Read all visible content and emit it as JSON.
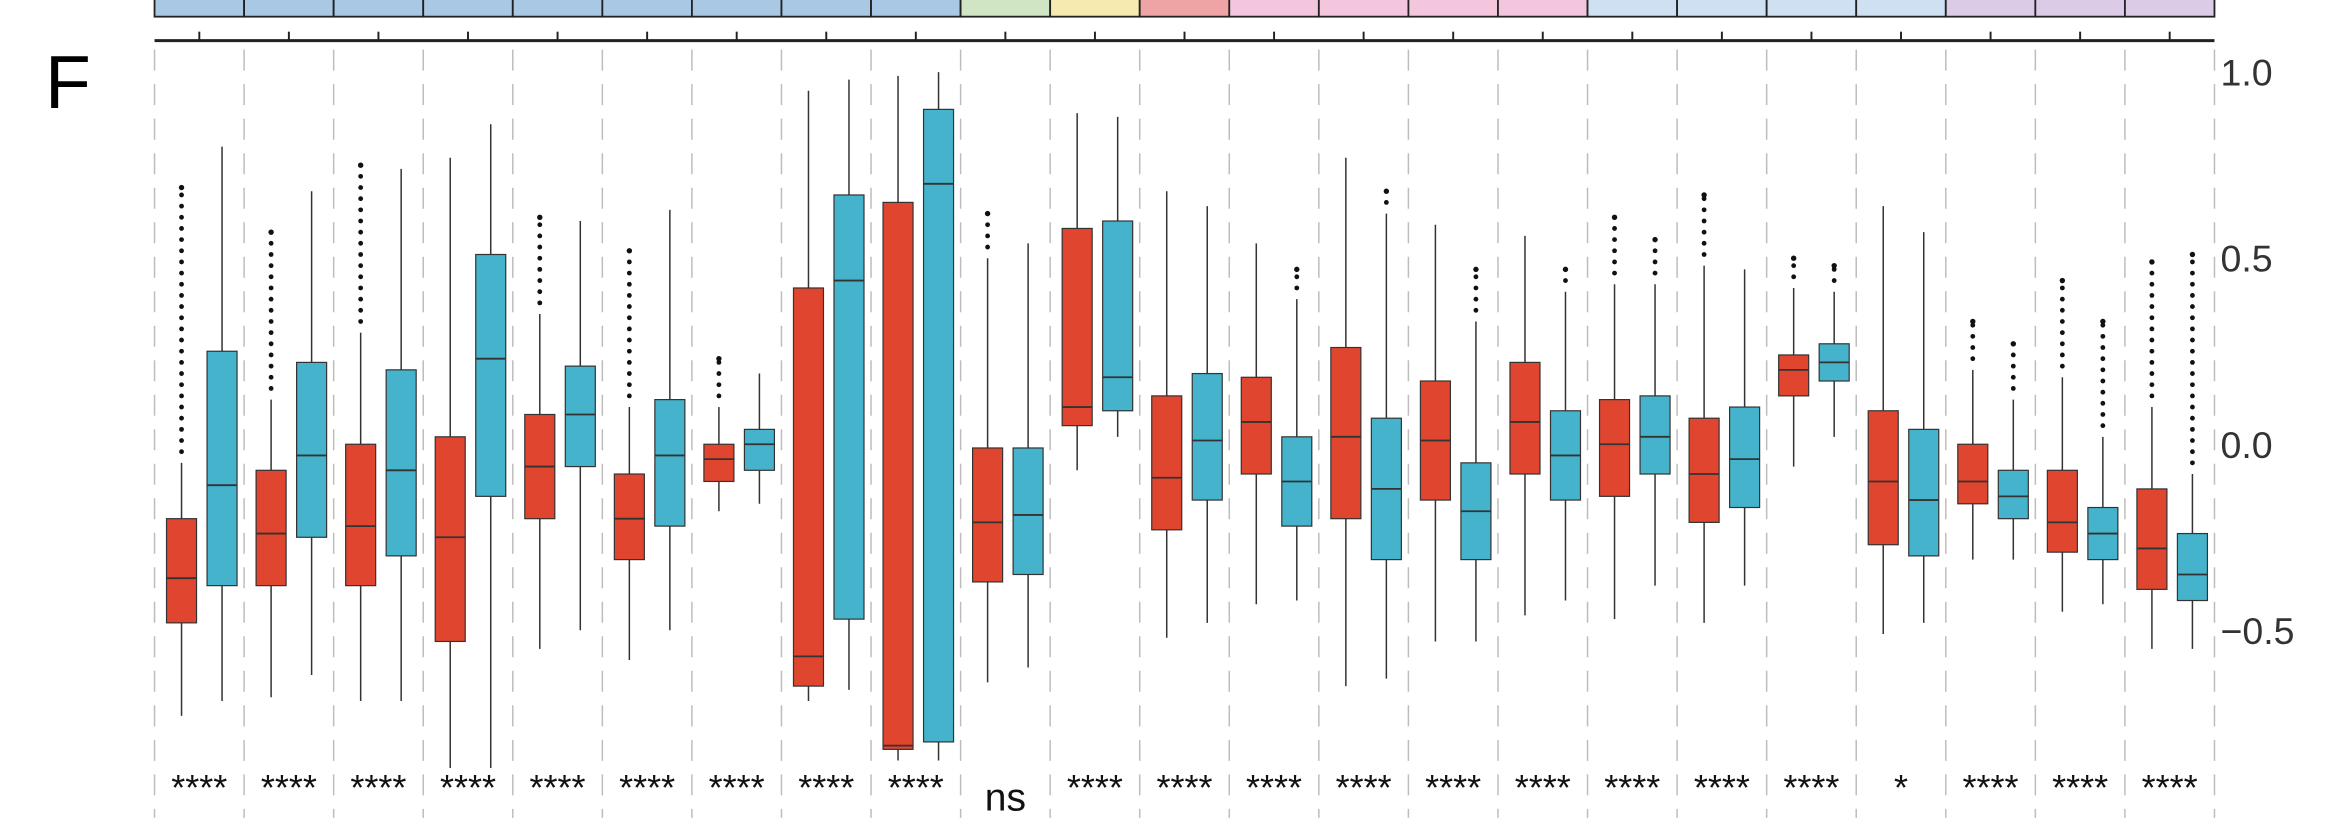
{
  "panel_label": "F",
  "chart_data": {
    "type": "box",
    "ylim": [
      -0.85,
      1.0
    ],
    "y_ticks": [
      1.0,
      0.5,
      0.0,
      -0.5
    ],
    "y_tick_labels": [
      "1.0",
      "0.5",
      "0.0",
      "−0.5"
    ],
    "y_axis_position": "right",
    "grid": "vertical dashed lines between groups",
    "series_colors": {
      "first": "#e0462f",
      "second": "#45b3cb"
    },
    "strip_colors": [
      "#a9c8e4",
      "#a9c8e4",
      "#a9c8e4",
      "#a9c8e4",
      "#a9c8e4",
      "#a9c8e4",
      "#a9c8e4",
      "#a9c8e4",
      "#a9c8e4",
      "#cfe5c4",
      "#f7eab0",
      "#eea4a4",
      "#f3c6de",
      "#f3c6de",
      "#f3c6de",
      "#f3c6de",
      "#cfe0f3",
      "#cfe0f3",
      "#cfe0f3",
      "#cfe0f3",
      "#dccbe6",
      "#dccbe6",
      "#dccbe6"
    ],
    "groups": [
      {
        "sig": "****",
        "red": [
          -0.73,
          -0.48,
          -0.36,
          -0.2,
          -0.05,
          0.69
        ],
        "blue": [
          -0.69,
          -0.38,
          -0.11,
          0.25,
          0.8,
          null
        ]
      },
      {
        "sig": "****",
        "red": [
          -0.68,
          -0.38,
          -0.24,
          -0.07,
          0.12,
          0.57
        ],
        "blue": [
          -0.62,
          -0.25,
          -0.03,
          0.22,
          0.68,
          null
        ]
      },
      {
        "sig": "****",
        "red": [
          -0.69,
          -0.38,
          -0.22,
          0.0,
          0.3,
          0.75
        ],
        "blue": [
          -0.69,
          -0.3,
          -0.07,
          0.2,
          0.74,
          null
        ]
      },
      {
        "sig": "****",
        "red": [
          -0.87,
          -0.53,
          -0.25,
          0.02,
          0.77,
          null
        ],
        "blue": [
          -0.87,
          -0.14,
          0.23,
          0.51,
          0.86,
          null
        ]
      },
      {
        "sig": "****",
        "red": [
          -0.55,
          -0.2,
          -0.06,
          0.08,
          0.35,
          0.61
        ],
        "blue": [
          -0.5,
          -0.06,
          0.08,
          0.21,
          0.6,
          null
        ]
      },
      {
        "sig": "****",
        "red": [
          -0.58,
          -0.31,
          -0.2,
          -0.08,
          0.1,
          0.52
        ],
        "blue": [
          -0.5,
          -0.22,
          -0.03,
          0.12,
          0.63,
          null
        ]
      },
      {
        "sig": "****",
        "red": [
          -0.18,
          -0.1,
          -0.04,
          0.0,
          0.1,
          0.23
        ],
        "blue": [
          -0.16,
          -0.07,
          0.0,
          0.04,
          0.19,
          null
        ]
      },
      {
        "sig": "****",
        "red": [
          -0.69,
          -0.65,
          -0.57,
          0.42,
          0.95,
          null
        ],
        "blue": [
          -0.66,
          -0.47,
          0.44,
          0.67,
          0.98,
          null
        ]
      },
      {
        "sig": "****",
        "red": [
          -0.85,
          -0.82,
          -0.81,
          0.65,
          0.99,
          null
        ],
        "blue": [
          -0.85,
          -0.8,
          0.7,
          0.9,
          1.0,
          null
        ]
      },
      {
        "sig": "ns",
        "red": [
          -0.64,
          -0.37,
          -0.21,
          -0.01,
          0.5,
          0.62
        ],
        "blue": [
          -0.6,
          -0.35,
          -0.19,
          -0.01,
          0.54,
          null
        ]
      },
      {
        "sig": "****",
        "red": [
          -0.07,
          0.05,
          0.1,
          0.58,
          0.89,
          null
        ],
        "blue": [
          0.02,
          0.09,
          0.18,
          0.6,
          0.88,
          null
        ]
      },
      {
        "sig": "****",
        "red": [
          -0.52,
          -0.23,
          -0.09,
          0.13,
          0.68,
          null
        ],
        "blue": [
          -0.48,
          -0.15,
          0.01,
          0.19,
          0.64,
          null
        ]
      },
      {
        "sig": "****",
        "red": [
          -0.43,
          -0.08,
          0.06,
          0.18,
          0.54,
          null
        ],
        "blue": [
          -0.42,
          -0.22,
          -0.1,
          0.02,
          0.39,
          0.47
        ]
      },
      {
        "sig": "****",
        "red": [
          -0.65,
          -0.2,
          0.02,
          0.26,
          0.77,
          null
        ],
        "blue": [
          -0.63,
          -0.31,
          -0.12,
          0.07,
          0.62,
          0.68
        ]
      },
      {
        "sig": "****",
        "red": [
          -0.53,
          -0.15,
          0.01,
          0.17,
          0.59,
          null
        ],
        "blue": [
          -0.53,
          -0.31,
          -0.18,
          -0.05,
          0.33,
          0.47
        ]
      },
      {
        "sig": "****",
        "red": [
          -0.46,
          -0.08,
          0.06,
          0.22,
          0.56,
          null
        ],
        "blue": [
          -0.42,
          -0.15,
          -0.03,
          0.09,
          0.41,
          0.47
        ]
      },
      {
        "sig": "****",
        "red": [
          -0.47,
          -0.14,
          0.0,
          0.12,
          0.43,
          0.61
        ],
        "blue": [
          -0.38,
          -0.08,
          0.02,
          0.13,
          0.43,
          0.55
        ]
      },
      {
        "sig": "****",
        "red": [
          -0.48,
          -0.21,
          -0.08,
          0.07,
          0.48,
          0.67
        ],
        "blue": [
          -0.38,
          -0.17,
          -0.04,
          0.1,
          0.47,
          null
        ]
      },
      {
        "sig": "****",
        "red": [
          -0.06,
          0.13,
          0.2,
          0.24,
          0.42,
          0.5
        ],
        "blue": [
          0.02,
          0.17,
          0.22,
          0.27,
          0.41,
          0.48
        ]
      },
      {
        "sig": "*",
        "red": [
          -0.51,
          -0.27,
          -0.1,
          0.09,
          0.64,
          null
        ],
        "blue": [
          -0.48,
          -0.3,
          -0.15,
          0.04,
          0.57,
          null
        ]
      },
      {
        "sig": "****",
        "red": [
          -0.31,
          -0.16,
          -0.1,
          0.0,
          0.2,
          0.33
        ],
        "blue": [
          -0.31,
          -0.2,
          -0.14,
          -0.07,
          0.12,
          0.27
        ]
      },
      {
        "sig": "****",
        "red": [
          -0.45,
          -0.29,
          -0.21,
          -0.07,
          0.18,
          0.44
        ],
        "blue": [
          -0.43,
          -0.31,
          -0.24,
          -0.17,
          0.02,
          0.33
        ]
      },
      {
        "sig": "****",
        "red": [
          -0.55,
          -0.39,
          -0.28,
          -0.12,
          0.1,
          0.49
        ],
        "blue": [
          -0.55,
          -0.42,
          -0.35,
          -0.24,
          -0.08,
          0.51
        ]
      }
    ],
    "box_value_order": [
      "whisker_low",
      "q1",
      "median",
      "q3",
      "whisker_high",
      "max_outlier"
    ]
  }
}
